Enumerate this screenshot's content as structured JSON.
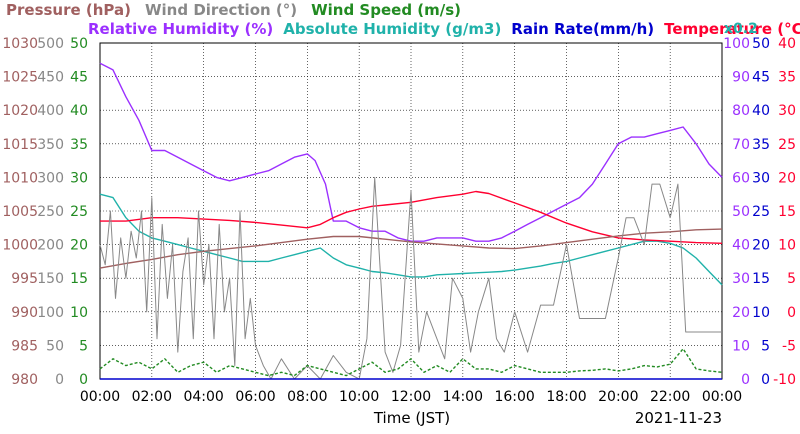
{
  "chart_data": {
    "type": "line",
    "legend": {
      "row1": [
        {
          "name": "Pressure (hPa)",
          "color": "#a06060"
        },
        {
          "name": "Wind Direction (°)",
          "color": "#888888"
        },
        {
          "name": "Wind Speed (m/s)",
          "color": "#228b22"
        }
      ],
      "row2": [
        {
          "name": "Relative Humidity (%)",
          "color": "#9b30ff"
        },
        {
          "name": "Absolute Humidity (g/m3)",
          "color": "#20b2aa"
        },
        {
          "name": "Rain Rate(mm/h)",
          "color": "#0000cd"
        },
        {
          "name": "Temperature (°C)",
          "color": "#ff0030"
        }
      ]
    },
    "rain_scale_note": "x0.2",
    "xlabel": "Time (JST)",
    "date": "2021-11-23",
    "x_ticks": [
      "00:00",
      "02:00",
      "04:00",
      "06:00",
      "08:00",
      "10:00",
      "12:00",
      "14:00",
      "16:00",
      "18:00",
      "20:00",
      "22:00",
      "00:00"
    ],
    "x_range_hours": [
      0,
      24
    ],
    "grid": true,
    "axes": {
      "pressure": {
        "ticks": [
          "980",
          "985",
          "990",
          "995",
          "1000",
          "1005",
          "1010",
          "1015",
          "1020",
          "1025",
          "1030"
        ],
        "range": [
          980,
          1030
        ],
        "color": "#a06060"
      },
      "wind_direction": {
        "ticks": [
          "0",
          "50",
          "100",
          "150",
          "200",
          "250",
          "300",
          "350",
          "400",
          "450",
          "500"
        ],
        "range": [
          0,
          500
        ],
        "color": "#888888"
      },
      "wind_speed": {
        "ticks": [
          "0",
          "5",
          "10",
          "15",
          "20",
          "25",
          "30",
          "35",
          "40",
          "45",
          "50"
        ],
        "range": [
          0,
          50
        ],
        "color": "#228b22"
      },
      "relative_humidity": {
        "ticks": [
          "0",
          "10",
          "20",
          "30",
          "40",
          "50",
          "60",
          "70",
          "80",
          "90",
          "100"
        ],
        "range": [
          0,
          100
        ],
        "color": "#9b30ff"
      },
      "rain_rate": {
        "ticks": [
          "0",
          "5",
          "10",
          "15",
          "20",
          "25",
          "30",
          "35",
          "40",
          "45",
          "50"
        ],
        "range": [
          0,
          50
        ],
        "color": "#0000cd"
      },
      "temperature": {
        "ticks": [
          "-10",
          "-5",
          "0",
          "5",
          "10",
          "15",
          "20",
          "25",
          "30",
          "35",
          "40"
        ],
        "range": [
          -10,
          40
        ],
        "color": "#ff0030"
      }
    },
    "series": [
      {
        "key": "relative_humidity",
        "axis": "relative_humidity",
        "color": "#9b30ff",
        "x": [
          0,
          0.5,
          1,
          1.5,
          2,
          2.5,
          3,
          3.5,
          4,
          4.5,
          5,
          5.5,
          6,
          6.5,
          7,
          7.5,
          8,
          8.3,
          8.7,
          9,
          9.5,
          10,
          10.5,
          11,
          11.5,
          12,
          12.5,
          13,
          13.5,
          14,
          14.5,
          15,
          15.5,
          16,
          16.5,
          17,
          17.5,
          18,
          18.5,
          19,
          19.5,
          20,
          20.5,
          21,
          21.5,
          22,
          22.5,
          23,
          23.5,
          24
        ],
        "y": [
          94,
          92,
          84,
          77,
          68,
          68,
          66,
          64,
          62,
          60,
          59,
          60,
          61,
          62,
          64,
          66,
          67,
          65,
          58,
          47,
          47,
          45,
          44,
          44,
          42,
          41,
          41,
          42,
          42,
          42,
          41,
          41,
          42,
          44,
          46,
          48,
          50,
          52,
          54,
          58,
          64,
          70,
          72,
          72,
          73,
          74,
          75,
          70,
          64,
          60
        ]
      },
      {
        "key": "absolute_humidity",
        "axis": "wind_speed",
        "color": "#20b2aa",
        "x": [
          0,
          0.5,
          1,
          1.5,
          2,
          2.5,
          3,
          3.5,
          4,
          4.5,
          5,
          5.5,
          6,
          6.5,
          7,
          7.5,
          8,
          8.5,
          9,
          9.5,
          10,
          10.5,
          11,
          11.5,
          12,
          12.5,
          13,
          13.5,
          14,
          14.5,
          15,
          15.5,
          16,
          16.5,
          17,
          17.5,
          18,
          18.5,
          19,
          19.5,
          20,
          20.5,
          21,
          21.5,
          22,
          22.5,
          23,
          23.5,
          24
        ],
        "y": [
          27.5,
          27,
          24,
          22,
          21,
          20.5,
          20,
          19.5,
          19,
          18.5,
          18,
          17.5,
          17.5,
          17.5,
          18,
          18.5,
          19,
          19.5,
          18,
          17,
          16.5,
          16,
          15.8,
          15.5,
          15.2,
          15.2,
          15.5,
          15.6,
          15.7,
          15.8,
          15.9,
          16,
          16.2,
          16.5,
          16.8,
          17.2,
          17.5,
          18,
          18.5,
          19,
          19.5,
          20,
          20.5,
          20.5,
          20.2,
          19.5,
          18,
          16,
          14
        ]
      },
      {
        "key": "temperature",
        "axis": "temperature",
        "color": "#ff0030",
        "x": [
          0,
          1,
          2,
          3,
          4,
          5,
          6,
          7,
          8,
          8.5,
          9,
          9.5,
          10,
          10.5,
          11,
          12,
          13,
          14,
          14.5,
          15,
          16,
          17,
          18,
          19,
          20,
          21,
          22,
          23,
          24
        ],
        "y": [
          13.5,
          13.5,
          14,
          14,
          13.8,
          13.6,
          13.3,
          12.9,
          12.5,
          13,
          14,
          14.8,
          15.3,
          15.7,
          15.9,
          16.3,
          17,
          17.5,
          17.9,
          17.6,
          16.2,
          14.8,
          13.2,
          11.9,
          11,
          10.7,
          10.5,
          10.3,
          10.2
        ]
      },
      {
        "key": "pressure",
        "axis": "pressure",
        "color": "#a06060",
        "x": [
          0,
          1,
          2,
          3,
          4,
          5,
          6,
          7,
          8,
          9,
          10,
          11,
          12,
          13,
          14,
          15,
          16,
          17,
          18,
          19,
          20,
          21,
          22,
          23,
          24
        ],
        "y": [
          996.5,
          997.2,
          997.8,
          998.5,
          999,
          999.4,
          999.8,
          1000.3,
          1000.8,
          1001.2,
          1001.2,
          1000.8,
          1000.4,
          1000.1,
          999.8,
          999.5,
          999.4,
          999.8,
          1000.3,
          1000.8,
          1001.3,
          1001.7,
          1001.9,
          1002.2,
          1002.3
        ]
      },
      {
        "key": "wind_direction",
        "axis": "wind_direction",
        "color": "#888888",
        "x": [
          0,
          0.2,
          0.4,
          0.6,
          0.8,
          1,
          1.2,
          1.4,
          1.6,
          1.8,
          2,
          2.2,
          2.4,
          2.6,
          2.8,
          3,
          3.2,
          3.4,
          3.6,
          3.8,
          4,
          4.2,
          4.4,
          4.6,
          4.8,
          5,
          5.2,
          5.4,
          5.6,
          5.8,
          6,
          6.3,
          6.6,
          7,
          7.5,
          8,
          8.5,
          9,
          9.5,
          10,
          10.3,
          10.6,
          11,
          11.3,
          11.6,
          12,
          12.3,
          12.6,
          13,
          13.3,
          13.6,
          14,
          14.3,
          14.6,
          15,
          15.3,
          15.6,
          16,
          16.5,
          17,
          17.5,
          18,
          18.5,
          19,
          19.5,
          20,
          20.3,
          20.6,
          21,
          21.3,
          21.6,
          22,
          22.3,
          22.6,
          23,
          23.5,
          24
        ],
        "y": [
          200,
          170,
          250,
          120,
          210,
          150,
          220,
          180,
          250,
          100,
          270,
          60,
          230,
          120,
          200,
          40,
          160,
          210,
          60,
          250,
          140,
          200,
          60,
          230,
          100,
          150,
          20,
          250,
          60,
          120,
          50,
          20,
          0,
          30,
          0,
          20,
          0,
          35,
          10,
          0,
          60,
          300,
          40,
          10,
          50,
          280,
          40,
          100,
          60,
          30,
          150,
          120,
          40,
          100,
          150,
          60,
          40,
          100,
          40,
          110,
          110,
          200,
          90,
          90,
          90,
          180,
          240,
          240,
          200,
          290,
          290,
          240,
          290,
          70,
          70,
          70,
          70
        ]
      },
      {
        "key": "wind_speed",
        "axis": "wind_speed",
        "color": "#228b22",
        "x": [
          0,
          0.5,
          1,
          1.5,
          2,
          2.5,
          3,
          3.5,
          4,
          4.5,
          5,
          5.5,
          6,
          6.5,
          7,
          7.5,
          8,
          8.5,
          9,
          9.5,
          10,
          10.5,
          11,
          11.5,
          12,
          12.5,
          13,
          13.5,
          14,
          14.5,
          15,
          15.5,
          16,
          16.5,
          17,
          17.5,
          18,
          18.5,
          19,
          19.5,
          20,
          20.5,
          21,
          21.5,
          22,
          22.5,
          23,
          23.5,
          24
        ],
        "y": [
          1.5,
          3,
          2,
          2.5,
          1.5,
          3,
          1,
          2,
          2.5,
          1,
          2,
          1.5,
          1,
          0.5,
          1,
          0.5,
          2,
          1.5,
          1,
          0.5,
          1.5,
          2.5,
          1,
          1.5,
          3,
          1,
          2,
          1,
          3,
          1.5,
          1.5,
          1,
          2,
          1.5,
          1,
          1,
          1,
          1.2,
          1.3,
          1.5,
          1.2,
          1.5,
          2,
          1.8,
          2.2,
          4.5,
          1.5,
          1.2,
          1
        ]
      },
      {
        "key": "rain_rate",
        "axis": "rain_rate",
        "color": "#0000cd",
        "x": [
          0,
          24
        ],
        "y": [
          0,
          0
        ]
      }
    ]
  }
}
